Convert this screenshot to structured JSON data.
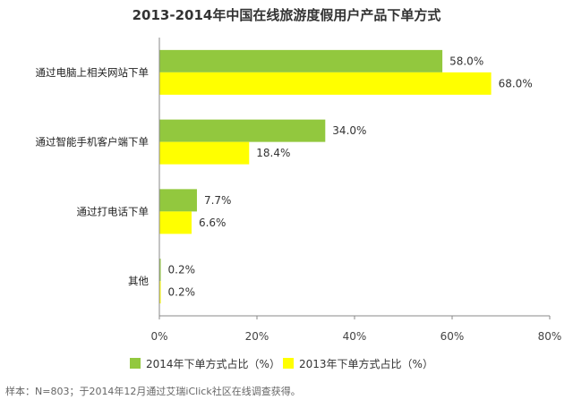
{
  "chart_data": {
    "type": "bar",
    "orientation": "horizontal",
    "title": "2013-2014年中国在线旅游度假用户产品下单方式",
    "categories": [
      "通过电脑上相关网站下单",
      "通过智能手机客户端下单",
      "通过打电话下单",
      "其他"
    ],
    "series": [
      {
        "name": "2014年下单方式占比（%）",
        "color": "#92c83e",
        "values": [
          58.0,
          34.0,
          7.7,
          0.2
        ],
        "labels": [
          "58.0%",
          "34.0%",
          "7.7%",
          "0.2%"
        ]
      },
      {
        "name": "2013年下单方式占比（%）",
        "color": "#ffff00",
        "values": [
          68.0,
          18.4,
          6.6,
          0.2
        ],
        "labels": [
          "68.0%",
          "18.4%",
          "6.6%",
          "0.2%"
        ]
      }
    ],
    "xlim": [
      0,
      80
    ],
    "x_ticks": [
      0,
      20,
      40,
      60,
      80
    ],
    "x_tick_labels": [
      "0%",
      "20%",
      "40%",
      "60%",
      "80%"
    ],
    "legend_position": "bottom",
    "grid": false
  },
  "footer": {
    "source": "样本：N=803；于2014年12月通过艾瑞iClick社区在线调查获得。"
  }
}
